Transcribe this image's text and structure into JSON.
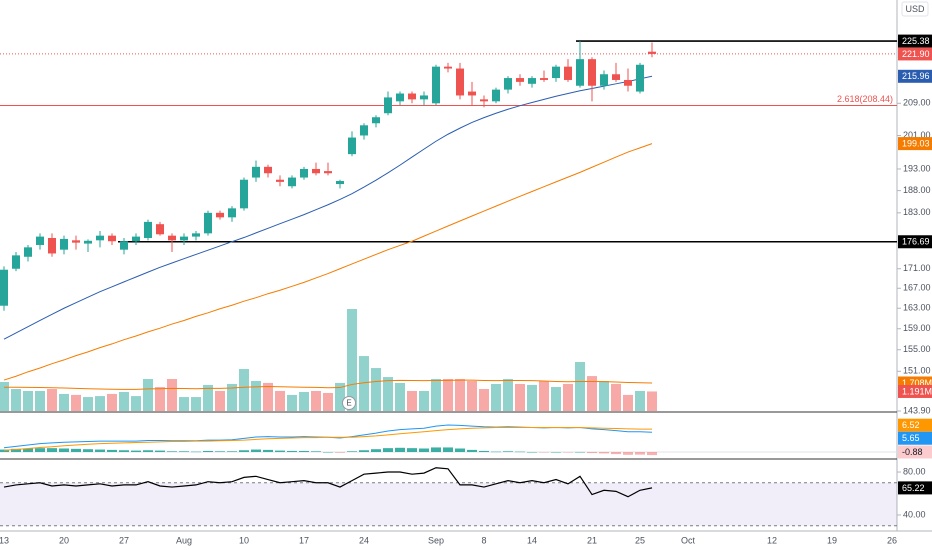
{
  "chart_data": {
    "type": "candlestick",
    "currency": "USD",
    "log_scale": true,
    "categories": [
      "13",
      null,
      null,
      null,
      null,
      "20",
      null,
      null,
      null,
      null,
      "27",
      null,
      null,
      null,
      null,
      "Aug",
      null,
      null,
      null,
      null,
      "10",
      null,
      null,
      null,
      null,
      "17",
      null,
      null,
      null,
      null,
      "24",
      null,
      null,
      null,
      null,
      null,
      "Sep",
      null,
      null,
      null,
      "8",
      null,
      null,
      null,
      "14",
      null,
      null,
      null,
      null,
      "21",
      null,
      null,
      null,
      "25",
      null,
      null,
      null,
      "Oct",
      null,
      null,
      null,
      null,
      null,
      null,
      "12",
      null,
      null,
      null,
      null,
      "19",
      null,
      null,
      null,
      null,
      "26"
    ],
    "open": [
      163.5,
      171,
      173.5,
      176,
      177.5,
      175,
      177,
      176.3,
      177,
      178,
      175,
      176.8,
      177.5,
      180.5,
      178,
      177,
      177.8,
      178.5,
      183,
      182,
      184,
      191,
      193.5,
      190.5,
      189,
      191,
      193,
      192.5,
      189.5,
      196.5,
      201,
      204,
      206.5,
      209.5,
      211.5,
      210,
      209,
      218.5,
      218,
      212,
      210,
      209.5,
      212.5,
      215.5,
      214,
      215.5,
      215.5,
      218.5,
      213.5,
      220.5,
      213.5,
      216.5,
      215,
      212,
      222.5,
      null,
      null,
      null,
      null,
      null,
      null,
      null,
      null,
      null,
      null,
      null,
      null,
      null,
      null,
      null,
      null,
      null,
      null,
      null,
      null
    ],
    "high": [
      171.5,
      174.5,
      176,
      178.5,
      178.5,
      178,
      178,
      177.2,
      179,
      178.5,
      177.5,
      178.5,
      181.5,
      181,
      178.5,
      178.5,
      179,
      183.5,
      183.5,
      184.5,
      191,
      195,
      194,
      191.5,
      191.5,
      193.5,
      194.5,
      194.5,
      190.5,
      202,
      204,
      206,
      212,
      212,
      212,
      212,
      219,
      219.5,
      219.5,
      214.5,
      211,
      213,
      216,
      216.5,
      216,
      217.5,
      219,
      220.5,
      225.38,
      221,
      217.5,
      219.5,
      218,
      219.5,
      225,
      null,
      null,
      null,
      null,
      null,
      null,
      null,
      null,
      null,
      null,
      null,
      null,
      null,
      null,
      null,
      null,
      null,
      null,
      null,
      null
    ],
    "low": [
      162.5,
      170.5,
      172.5,
      175,
      173.5,
      174,
      175,
      174.5,
      175.5,
      176,
      174,
      176,
      177,
      178,
      174.5,
      176,
      177,
      178,
      181.5,
      181,
      183.5,
      190,
      191,
      189,
      188.5,
      190.5,
      191.5,
      191.5,
      188.5,
      196,
      200,
      203,
      206,
      208.5,
      209,
      208.5,
      208.5,
      217,
      210,
      208.5,
      208,
      209,
      211.5,
      213.5,
      213,
      214.5,
      214.5,
      214.5,
      213,
      209.5,
      212.5,
      214.5,
      212,
      211.5,
      221,
      null,
      null,
      null,
      null,
      null,
      null,
      null,
      null,
      null,
      null,
      null,
      null,
      null,
      null,
      null,
      null,
      null,
      null,
      null,
      null
    ],
    "close": [
      170.8,
      173.8,
      175.5,
      177.8,
      174.2,
      177.3,
      176.5,
      176.9,
      178,
      176.8,
      176.8,
      177.8,
      181,
      178.3,
      177,
      177.8,
      178.5,
      183,
      182,
      184,
      190.5,
      193.5,
      192,
      190,
      191,
      193,
      192,
      192,
      190.2,
      200.5,
      203.5,
      205.5,
      210.5,
      211.5,
      210,
      211,
      218.5,
      218,
      211,
      211,
      209.5,
      212.5,
      215.5,
      214.5,
      215.5,
      215,
      218.5,
      215,
      220.5,
      213.5,
      216.5,
      215,
      213.5,
      219,
      221.9,
      null,
      null,
      null,
      null,
      null,
      null,
      null,
      null,
      null,
      null,
      null,
      null,
      null,
      null,
      null,
      null,
      null,
      null,
      null,
      null
    ],
    "up_color": "#26a69a",
    "down_color": "#ef5350",
    "ylim": [
      143.9,
      236.9
    ],
    "yticks": [
      {
        "value": 209,
        "label": "209.00"
      },
      {
        "value": 201,
        "label": "201.00"
      },
      {
        "value": 193,
        "label": "193.00"
      },
      {
        "value": 188,
        "label": "188.00"
      },
      {
        "value": 183,
        "label": "183.00"
      },
      {
        "value": 171,
        "label": "171.00"
      },
      {
        "value": 167,
        "label": "167.00"
      },
      {
        "value": 163,
        "label": "163.00"
      },
      {
        "value": 159,
        "label": "159.00"
      },
      {
        "value": 155,
        "label": "155.00"
      },
      {
        "value": 151,
        "label": "151.00"
      },
      {
        "value": 143.9,
        "label": "143.90"
      }
    ],
    "overlays": [
      {
        "color": "#2a5db0",
        "values": [
          157,
          158.2,
          159.4,
          160.6,
          161.8,
          163,
          164.1,
          165.2,
          166.3,
          167.3,
          168.3,
          169.3,
          170.3,
          171.3,
          172.2,
          173.1,
          174,
          174.9,
          175.8,
          176.7,
          177.6,
          178.6,
          179.6,
          180.6,
          181.6,
          182.6,
          183.7,
          184.8,
          186,
          187.3,
          188.8,
          190.4,
          192.1,
          193.9,
          195.8,
          197.7,
          199.6,
          201.3,
          202.8,
          204.2,
          205.4,
          206.5,
          207.5,
          208.4,
          209.2,
          210,
          210.8,
          211.5,
          212.2,
          212.8,
          213.4,
          214,
          214.6,
          215.3,
          215.96,
          null,
          null,
          null,
          null,
          null,
          null,
          null,
          null,
          null,
          null,
          null,
          null,
          null,
          null,
          null,
          null,
          null,
          null,
          null,
          null
        ]
      },
      {
        "color": "#f57c00",
        "values": [
          149.4,
          150.1,
          150.9,
          151.6,
          152.4,
          153.1,
          153.9,
          154.6,
          155.4,
          156.1,
          156.9,
          157.6,
          158.4,
          159.1,
          159.9,
          160.6,
          161.4,
          162.1,
          162.9,
          163.6,
          164.4,
          165.1,
          165.9,
          166.6,
          167.4,
          168.2,
          169.1,
          170,
          171,
          172,
          173,
          174,
          175,
          175.9,
          176.8,
          177.9,
          179,
          180.1,
          181.2,
          182.3,
          183.4,
          184.5,
          185.6,
          186.7,
          187.8,
          188.9,
          190,
          191.1,
          192.2,
          193.4,
          194.6,
          195.8,
          197,
          198,
          199.03,
          null,
          null,
          null,
          null,
          null,
          null,
          null,
          null,
          null,
          null,
          null,
          null,
          null,
          null,
          null,
          null,
          null,
          null,
          null,
          null
        ]
      }
    ],
    "last_price": {
      "value": 221.9,
      "label": "221.90"
    },
    "price_lines": [
      {
        "value": 225.38,
        "color": "#000000"
      },
      {
        "value": 176.69,
        "color": "#000000"
      }
    ],
    "fib_line": {
      "value": 208.44,
      "label": "2.618(208.44)",
      "color": "#ef5350"
    },
    "earnings_label": "E",
    "volume": [
      1.77,
      1.34,
      1.22,
      1.22,
      1.34,
      1.04,
      0.98,
      0.85,
      0.91,
      1.04,
      1.16,
      0.91,
      1.95,
      1.46,
      1.95,
      0.85,
      0.85,
      1.59,
      1.22,
      1.65,
      2.56,
      1.83,
      1.71,
      1.22,
      0.98,
      1.16,
      1.22,
      1.1,
      1.71,
      6.22,
      3.35,
      2.62,
      2.07,
      1.71,
      1.22,
      1.22,
      1.95,
      1.95,
      1.95,
      1.83,
      1.34,
      1.65,
      1.95,
      1.65,
      1.59,
      1.83,
      1.46,
      1.65,
      2.99,
      2.13,
      1.83,
      1.65,
      0.98,
      1.22,
      1.191,
      null,
      null,
      null,
      null,
      null,
      null,
      null,
      null,
      null,
      null,
      null,
      null,
      null,
      null,
      null,
      null,
      null,
      null,
      null,
      null
    ],
    "volume_ma": [
      1.45,
      1.45,
      1.44,
      1.43,
      1.42,
      1.4,
      1.38,
      1.36,
      1.34,
      1.33,
      1.32,
      1.32,
      1.35,
      1.36,
      1.38,
      1.37,
      1.36,
      1.38,
      1.38,
      1.4,
      1.45,
      1.47,
      1.49,
      1.48,
      1.46,
      1.45,
      1.44,
      1.42,
      1.43,
      1.62,
      1.72,
      1.8,
      1.85,
      1.87,
      1.86,
      1.85,
      1.86,
      1.87,
      1.88,
      1.88,
      1.86,
      1.85,
      1.86,
      1.86,
      1.85,
      1.83,
      1.8,
      1.78,
      1.8,
      1.8,
      1.79,
      1.77,
      1.74,
      1.72,
      1.708,
      null,
      null,
      null,
      null,
      null,
      null,
      null,
      null,
      null,
      null,
      null,
      null,
      null,
      null,
      null,
      null,
      null,
      null,
      null,
      null
    ],
    "volume_ma_color": "#f57c00",
    "volume_markers": [
      {
        "value": 1.708,
        "label": "1.708M",
        "color": "#f57c00"
      },
      {
        "value": 1.191,
        "label": "1.191M",
        "color": "#ef5350"
      }
    ],
    "macd": {
      "macd_color": "#2196f3",
      "signal_color": "#ff9800",
      "macd": [
        1.2,
        1.6,
        2,
        2.4,
        2.6,
        2.8,
        2.9,
        3,
        3.1,
        3.1,
        3.1,
        3.1,
        3.3,
        3.3,
        3.2,
        3.2,
        3.2,
        3.4,
        3.4,
        3.5,
        3.9,
        4.3,
        4.4,
        4.3,
        4.3,
        4.4,
        4.3,
        4.2,
        4,
        4.4,
        4.9,
        5.4,
        6,
        6.4,
        6.6,
        6.8,
        7.4,
        7.7,
        7.6,
        7.4,
        7.2,
        7.1,
        7.2,
        7.1,
        7,
        6.9,
        7,
        6.9,
        7,
        6.6,
        6.4,
        6.1,
        5.8,
        5.8,
        5.65,
        null,
        null,
        null,
        null,
        null,
        null,
        null,
        null,
        null,
        null,
        null,
        null,
        null,
        null,
        null,
        null,
        null,
        null,
        null,
        null
      ],
      "signal": [
        0.5,
        0.7,
        1,
        1.3,
        1.5,
        1.8,
        2,
        2.2,
        2.4,
        2.5,
        2.6,
        2.7,
        2.8,
        2.9,
        3,
        3,
        3.1,
        3.1,
        3.2,
        3.3,
        3.4,
        3.6,
        3.8,
        3.9,
        4,
        4.1,
        4.1,
        4.2,
        4.2,
        4.2,
        4.4,
        4.6,
        4.9,
        5.2,
        5.5,
        5.8,
        6.1,
        6.4,
        6.6,
        6.8,
        6.9,
        7,
        7,
        7,
        7,
        7,
        7,
        6.99,
        6.99,
        6.9,
        6.8,
        6.7,
        6.6,
        6.55,
        6.52,
        null,
        null,
        null,
        null,
        null,
        null,
        null,
        null,
        null,
        null,
        null,
        null,
        null,
        null,
        null,
        null,
        null,
        null,
        null,
        null
      ],
      "histogram": [
        0.7,
        0.9,
        1,
        1.1,
        1.1,
        1,
        0.9,
        0.8,
        0.7,
        0.6,
        0.5,
        0.4,
        0.5,
        0.4,
        0.2,
        0.2,
        0.1,
        0.3,
        0.2,
        0.2,
        0.5,
        0.7,
        0.6,
        0.4,
        0.3,
        0.3,
        0.2,
        0,
        -0.2,
        0.2,
        0.5,
        0.8,
        1.1,
        1.2,
        1.1,
        1,
        1.3,
        1.3,
        1,
        0.6,
        0.3,
        0.1,
        0.2,
        0.1,
        0,
        -0.1,
        0,
        -0.09,
        0.01,
        -0.3,
        -0.4,
        -0.6,
        -0.8,
        -0.75,
        -0.88,
        null,
        null,
        null,
        null,
        null,
        null,
        null,
        null,
        null,
        null,
        null,
        null,
        null,
        null,
        null,
        null,
        null,
        null,
        null,
        null
      ]
    },
    "rsi": {
      "color": "#000000",
      "band": [
        30,
        70
      ],
      "band_color": "#7e57c2",
      "ylim": [
        26,
        91.2
      ],
      "yticks": [
        {
          "value": 80,
          "label": "80.00"
        },
        {
          "value": 40,
          "label": "40.00"
        }
      ],
      "values": [
        66,
        68,
        69,
        70,
        67,
        68,
        67,
        68,
        69,
        67,
        68,
        68,
        71,
        67,
        66,
        67,
        68,
        71,
        70,
        71,
        75,
        76,
        73,
        70,
        71,
        72,
        70,
        70,
        66,
        72,
        78,
        79,
        80,
        80,
        78,
        79,
        84,
        83,
        68,
        68,
        66,
        69,
        72,
        70,
        72,
        70,
        73,
        69,
        76,
        59,
        63,
        62,
        57,
        63,
        65.22,
        null,
        null,
        null,
        null,
        null,
        null,
        null,
        null,
        null,
        null,
        null,
        null,
        null,
        null,
        null,
        null,
        null,
        null,
        null,
        null
      ]
    }
  }
}
